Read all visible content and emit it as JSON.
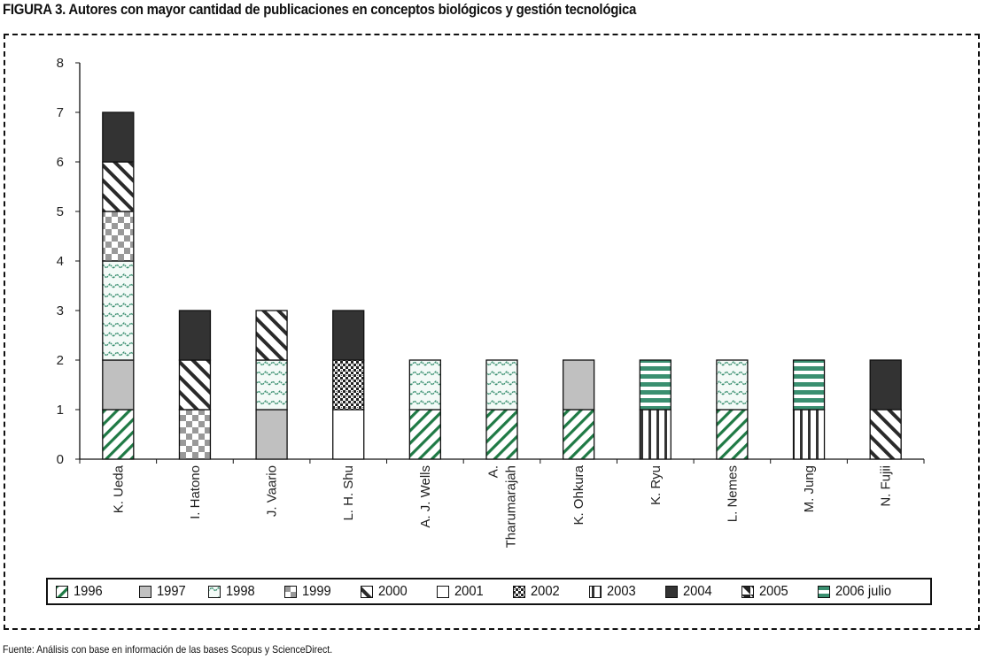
{
  "figure": {
    "title": "FIGURA 3. Autores con mayor cantidad de publicaciones en conceptos biológicos y gestión tecnológica",
    "source": "Fuente: Análisis con base en información de las bases Scopus y ScienceDirect."
  },
  "chart_data": {
    "type": "bar",
    "stacked": true,
    "title": "Autores con mayor cantidad de publicaciones en conceptos biológicos y gestión tecnológica",
    "xlabel": "",
    "ylabel": "",
    "ylim": [
      0,
      8
    ],
    "yticks": [
      "0",
      "1",
      "2",
      "3",
      "4",
      "5",
      "6",
      "7",
      "8"
    ],
    "grid": false,
    "legend_position": "bottom",
    "categories": [
      "K. Ueda",
      "I. Hatono",
      "J. Vaario",
      "L. H. Shu",
      "A. J. Wells",
      "A. Tharumarajah",
      "K. Ohkura",
      "K. Ryu",
      "L. Nemes",
      "M. Jung",
      "N. Fujii"
    ],
    "category_labels": [
      [
        "K. Ueda"
      ],
      [
        "I. Hatono"
      ],
      [
        "J. Vaario"
      ],
      [
        "L. H. Shu"
      ],
      [
        "A. J. Wells"
      ],
      [
        "A.",
        "Tharumarajah"
      ],
      [
        "K. Ohkura"
      ],
      [
        "K. Ryu"
      ],
      [
        "L. Nemes"
      ],
      [
        "M. Jung"
      ],
      [
        "N. Fujii"
      ]
    ],
    "series": [
      {
        "name": "1996",
        "pattern": "diag-green",
        "values": [
          1,
          0,
          0,
          0,
          1,
          1,
          1,
          0,
          1,
          0,
          0
        ]
      },
      {
        "name": "1997",
        "pattern": "solid-grey",
        "values": [
          1,
          0,
          1,
          0,
          0,
          0,
          1,
          0,
          0,
          0,
          0
        ]
      },
      {
        "name": "1998",
        "pattern": "wave-green",
        "values": [
          2,
          0,
          1,
          0,
          1,
          1,
          0,
          0,
          1,
          0,
          0
        ]
      },
      {
        "name": "1999",
        "pattern": "checker-grey",
        "values": [
          1,
          1,
          0,
          0,
          0,
          0,
          0,
          0,
          0,
          0,
          0
        ]
      },
      {
        "name": "2000",
        "pattern": "diag-black",
        "values": [
          1,
          1,
          1,
          0,
          0,
          0,
          0,
          0,
          0,
          0,
          1
        ]
      },
      {
        "name": "2001",
        "pattern": "white",
        "values": [
          0,
          0,
          0,
          1,
          0,
          0,
          0,
          0,
          0,
          0,
          0
        ]
      },
      {
        "name": "2002",
        "pattern": "dots-black",
        "values": [
          0,
          0,
          0,
          1,
          0,
          0,
          0,
          0,
          0,
          0,
          0
        ]
      },
      {
        "name": "2003",
        "pattern": "vlines-black",
        "values": [
          0,
          0,
          0,
          0,
          0,
          0,
          0,
          1,
          0,
          1,
          0
        ]
      },
      {
        "name": "2004",
        "pattern": "solid-dark",
        "values": [
          1,
          1,
          0,
          1,
          0,
          0,
          0,
          0,
          0,
          0,
          1
        ]
      },
      {
        "name": "2005",
        "pattern": "corner-black",
        "values": [
          0,
          0,
          0,
          0,
          0,
          0,
          0,
          0,
          0,
          0,
          0
        ]
      },
      {
        "name": "2006 julio",
        "pattern": "hlines-green",
        "values": [
          0,
          0,
          0,
          0,
          0,
          0,
          0,
          1,
          0,
          1,
          0
        ]
      }
    ],
    "totals": [
      7,
      3,
      3,
      3,
      2,
      2,
      2,
      2,
      2,
      2,
      2
    ]
  },
  "colors": {
    "green": "#1f7a45",
    "teal": "#3a8f70",
    "grey": "#c0c0c0",
    "checker_grey": "#999999",
    "dark": "#333333"
  }
}
